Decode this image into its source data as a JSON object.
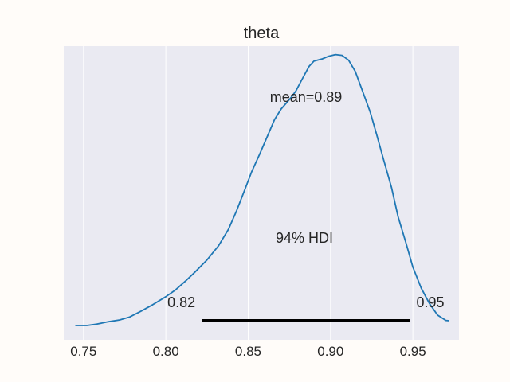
{
  "chart_data": {
    "type": "line",
    "title": "theta",
    "xlabel": "",
    "ylabel": "",
    "xlim": [
      0.738,
      0.978
    ],
    "ylim": [
      0,
      1
    ],
    "grid": "vertical",
    "x_ticks": [
      0.75,
      0.8,
      0.85,
      0.9,
      0.95
    ],
    "x_tick_labels": [
      "0.75",
      "0.80",
      "0.85",
      "0.90",
      "0.95"
    ],
    "series": [
      {
        "color": "#1f77b4",
        "points": [
          [
            0.745,
            0.0
          ],
          [
            0.752,
            0.0
          ],
          [
            0.758,
            0.005
          ],
          [
            0.765,
            0.014
          ],
          [
            0.772,
            0.021
          ],
          [
            0.778,
            0.032
          ],
          [
            0.785,
            0.054
          ],
          [
            0.792,
            0.078
          ],
          [
            0.8,
            0.108
          ],
          [
            0.806,
            0.134
          ],
          [
            0.812,
            0.167
          ],
          [
            0.818,
            0.202
          ],
          [
            0.825,
            0.246
          ],
          [
            0.832,
            0.299
          ],
          [
            0.838,
            0.361
          ],
          [
            0.843,
            0.431
          ],
          [
            0.848,
            0.51
          ],
          [
            0.852,
            0.575
          ],
          [
            0.857,
            0.643
          ],
          [
            0.862,
            0.715
          ],
          [
            0.866,
            0.772
          ],
          [
            0.87,
            0.812
          ],
          [
            0.873,
            0.833
          ],
          [
            0.876,
            0.855
          ],
          [
            0.879,
            0.88
          ],
          [
            0.883,
            0.927
          ],
          [
            0.887,
            0.972
          ],
          [
            0.89,
            0.992
          ],
          [
            0.895,
            1.0
          ],
          [
            0.899,
            1.01
          ],
          [
            0.903,
            1.016
          ],
          [
            0.907,
            1.013
          ],
          [
            0.911,
            0.995
          ],
          [
            0.915,
            0.953
          ],
          [
            0.919,
            0.886
          ],
          [
            0.924,
            0.802
          ],
          [
            0.928,
            0.716
          ],
          [
            0.932,
            0.627
          ],
          [
            0.937,
            0.518
          ],
          [
            0.941,
            0.409
          ],
          [
            0.946,
            0.305
          ],
          [
            0.95,
            0.219
          ],
          [
            0.955,
            0.141
          ],
          [
            0.96,
            0.083
          ],
          [
            0.965,
            0.039
          ],
          [
            0.97,
            0.019
          ],
          [
            0.972,
            0.018
          ]
        ]
      }
    ],
    "annotations": {
      "mean_label": "mean=0.89",
      "hdi_label": "94% HDI",
      "hdi_low": 0.822,
      "hdi_high": 0.948,
      "hdi_low_label": "0.82",
      "hdi_high_label": "0.95"
    }
  }
}
